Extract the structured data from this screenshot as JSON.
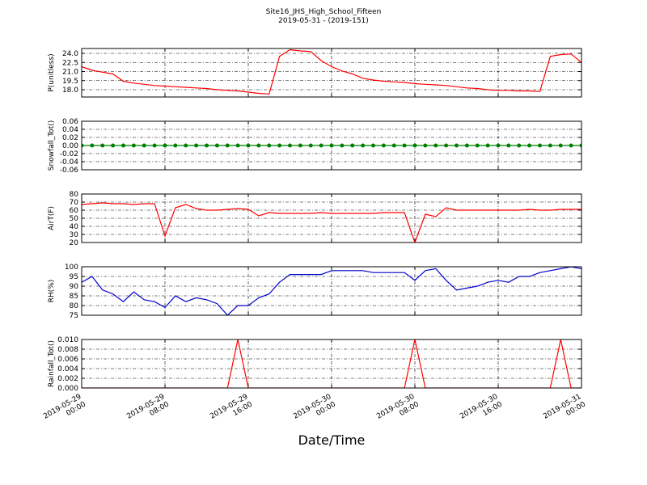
{
  "chart_data": [
    {
      "type": "line",
      "title": "Site16_JHS_High_School_Fifteen",
      "subtitle": "2019-05-31 - (2019-151)",
      "ylabel": "P(unitless)",
      "color": "#ff0000",
      "grid": true,
      "x": [
        "2019-05-29 00:00",
        "2019-05-29 01:00",
        "2019-05-29 02:00",
        "2019-05-29 03:00",
        "2019-05-29 04:00",
        "2019-05-29 05:00",
        "2019-05-29 06:00",
        "2019-05-29 07:00",
        "2019-05-29 08:00",
        "2019-05-29 09:00",
        "2019-05-29 10:00",
        "2019-05-29 11:00",
        "2019-05-29 12:00",
        "2019-05-29 13:00",
        "2019-05-29 14:00",
        "2019-05-29 15:00",
        "2019-05-29 16:00",
        "2019-05-29 17:00",
        "2019-05-29 18:00",
        "2019-05-29 19:00",
        "2019-05-29 20:00",
        "2019-05-29 21:00",
        "2019-05-29 22:00",
        "2019-05-29 23:00",
        "2019-05-30 00:00",
        "2019-05-30 01:00",
        "2019-05-30 02:00",
        "2019-05-30 03:00",
        "2019-05-30 04:00",
        "2019-05-30 05:00",
        "2019-05-30 06:00",
        "2019-05-30 07:00",
        "2019-05-30 08:00",
        "2019-05-30 09:00",
        "2019-05-30 10:00",
        "2019-05-30 11:00",
        "2019-05-30 12:00",
        "2019-05-30 13:00",
        "2019-05-30 14:00",
        "2019-05-30 15:00",
        "2019-05-30 16:00",
        "2019-05-30 17:00",
        "2019-05-30 18:00",
        "2019-05-30 19:00",
        "2019-05-30 20:00",
        "2019-05-30 21:00",
        "2019-05-30 22:00",
        "2019-05-30 23:00",
        "2019-05-31 00:00"
      ],
      "values": [
        21.8,
        21.2,
        20.9,
        20.6,
        19.4,
        19.1,
        18.9,
        18.7,
        18.6,
        18.5,
        18.4,
        18.3,
        18.2,
        18.0,
        17.9,
        17.8,
        17.6,
        17.4,
        17.3,
        23.5,
        24.6,
        24.4,
        24.3,
        22.8,
        21.8,
        21.1,
        20.6,
        19.9,
        19.6,
        19.4,
        19.3,
        19.2,
        19.0,
        18.9,
        18.8,
        18.7,
        18.5,
        18.3,
        18.2,
        18.0,
        17.9,
        17.9,
        17.8,
        17.8,
        17.7,
        23.5,
        23.8,
        23.9,
        22.5
      ],
      "ylim": [
        16.8,
        24.8
      ],
      "yticks": [
        {
          "value": 18,
          "label": "18.0"
        },
        19.5,
        {
          "value": 21,
          "label": "21.0"
        },
        22.5,
        {
          "value": 24,
          "label": "24.0"
        }
      ]
    },
    {
      "type": "line",
      "ylabel": "Snowfall_Tot()",
      "color": "#008000",
      "markers": true,
      "grid": true,
      "x": [
        "2019-05-29 00:00",
        "2019-05-29 01:00",
        "2019-05-29 02:00",
        "2019-05-29 03:00",
        "2019-05-29 04:00",
        "2019-05-29 05:00",
        "2019-05-29 06:00",
        "2019-05-29 07:00",
        "2019-05-29 08:00",
        "2019-05-29 09:00",
        "2019-05-29 10:00",
        "2019-05-29 11:00",
        "2019-05-29 12:00",
        "2019-05-29 13:00",
        "2019-05-29 14:00",
        "2019-05-29 15:00",
        "2019-05-29 16:00",
        "2019-05-29 17:00",
        "2019-05-29 18:00",
        "2019-05-29 19:00",
        "2019-05-29 20:00",
        "2019-05-29 21:00",
        "2019-05-29 22:00",
        "2019-05-29 23:00",
        "2019-05-30 00:00",
        "2019-05-30 01:00",
        "2019-05-30 02:00",
        "2019-05-30 03:00",
        "2019-05-30 04:00",
        "2019-05-30 05:00",
        "2019-05-30 06:00",
        "2019-05-30 07:00",
        "2019-05-30 08:00",
        "2019-05-30 09:00",
        "2019-05-30 10:00",
        "2019-05-30 11:00",
        "2019-05-30 12:00",
        "2019-05-30 13:00",
        "2019-05-30 14:00",
        "2019-05-30 15:00",
        "2019-05-30 16:00",
        "2019-05-30 17:00",
        "2019-05-30 18:00",
        "2019-05-30 19:00",
        "2019-05-30 20:00",
        "2019-05-30 21:00",
        "2019-05-30 22:00",
        "2019-05-30 23:00",
        "2019-05-31 00:00"
      ],
      "values": [
        0,
        0,
        0,
        0,
        0,
        0,
        0,
        0,
        0,
        0,
        0,
        0,
        0,
        0,
        0,
        0,
        0,
        0,
        0,
        0,
        0,
        0,
        0,
        0,
        0,
        0,
        0,
        0,
        0,
        0,
        0,
        0,
        0,
        0,
        0,
        0,
        0,
        0,
        0,
        0,
        0,
        0,
        0,
        0,
        0,
        0,
        0,
        0,
        0
      ],
      "ylim": [
        -0.06,
        0.06
      ],
      "yticks": [
        {
          "value": -0.06,
          "label": "-0.06"
        },
        {
          "value": -0.04,
          "label": "-0.04"
        },
        {
          "value": -0.02,
          "label": "-0.02"
        },
        {
          "value": 0,
          "label": "0.00"
        },
        {
          "value": 0.02,
          "label": "0.02"
        },
        {
          "value": 0.04,
          "label": "0.04"
        },
        {
          "value": 0.06,
          "label": "0.06"
        }
      ]
    },
    {
      "type": "line",
      "ylabel": "AirT(F)",
      "color": "#ff0000",
      "grid": true,
      "x": [
        "2019-05-29 00:00",
        "2019-05-29 01:00",
        "2019-05-29 02:00",
        "2019-05-29 03:00",
        "2019-05-29 04:00",
        "2019-05-29 05:00",
        "2019-05-29 06:00",
        "2019-05-29 07:00",
        "2019-05-29 08:00",
        "2019-05-29 09:00",
        "2019-05-29 10:00",
        "2019-05-29 11:00",
        "2019-05-29 12:00",
        "2019-05-29 13:00",
        "2019-05-29 14:00",
        "2019-05-29 15:00",
        "2019-05-29 16:00",
        "2019-05-29 17:00",
        "2019-05-29 18:00",
        "2019-05-29 19:00",
        "2019-05-29 20:00",
        "2019-05-29 21:00",
        "2019-05-29 22:00",
        "2019-05-29 23:00",
        "2019-05-30 00:00",
        "2019-05-30 01:00",
        "2019-05-30 02:00",
        "2019-05-30 03:00",
        "2019-05-30 04:00",
        "2019-05-30 05:00",
        "2019-05-30 06:00",
        "2019-05-30 07:00",
        "2019-05-30 08:00",
        "2019-05-30 09:00",
        "2019-05-30 10:00",
        "2019-05-30 11:00",
        "2019-05-30 12:00",
        "2019-05-30 13:00",
        "2019-05-30 14:00",
        "2019-05-30 15:00",
        "2019-05-30 16:00",
        "2019-05-30 17:00",
        "2019-05-30 18:00",
        "2019-05-30 19:00",
        "2019-05-30 20:00",
        "2019-05-30 21:00",
        "2019-05-30 22:00",
        "2019-05-30 23:00",
        "2019-05-31 00:00"
      ],
      "values": [
        67,
        68,
        69,
        68,
        68,
        67,
        68,
        68,
        28,
        63,
        67,
        62,
        60,
        60,
        61,
        62,
        61,
        53,
        57,
        56,
        56,
        56,
        56,
        57,
        56,
        56,
        56,
        56,
        56,
        57,
        57,
        57,
        20,
        55,
        52,
        63,
        60,
        60,
        60,
        60,
        60,
        60,
        60,
        61,
        60,
        60,
        61,
        61,
        61
      ],
      "ylim": [
        20,
        80
      ],
      "yticks": [
        20,
        30,
        40,
        50,
        60,
        70,
        80
      ]
    },
    {
      "type": "line",
      "ylabel": "RH(%)",
      "color": "#0000cc",
      "grid": true,
      "x": [
        "2019-05-29 00:00",
        "2019-05-29 01:00",
        "2019-05-29 02:00",
        "2019-05-29 03:00",
        "2019-05-29 04:00",
        "2019-05-29 05:00",
        "2019-05-29 06:00",
        "2019-05-29 07:00",
        "2019-05-29 08:00",
        "2019-05-29 09:00",
        "2019-05-29 10:00",
        "2019-05-29 11:00",
        "2019-05-29 12:00",
        "2019-05-29 13:00",
        "2019-05-29 14:00",
        "2019-05-29 15:00",
        "2019-05-29 16:00",
        "2019-05-29 17:00",
        "2019-05-29 18:00",
        "2019-05-29 19:00",
        "2019-05-29 20:00",
        "2019-05-29 21:00",
        "2019-05-29 22:00",
        "2019-05-29 23:00",
        "2019-05-30 00:00",
        "2019-05-30 01:00",
        "2019-05-30 02:00",
        "2019-05-30 03:00",
        "2019-05-30 04:00",
        "2019-05-30 05:00",
        "2019-05-30 06:00",
        "2019-05-30 07:00",
        "2019-05-30 08:00",
        "2019-05-30 09:00",
        "2019-05-30 10:00",
        "2019-05-30 11:00",
        "2019-05-30 12:00",
        "2019-05-30 13:00",
        "2019-05-30 14:00",
        "2019-05-30 15:00",
        "2019-05-30 16:00",
        "2019-05-30 17:00",
        "2019-05-30 18:00",
        "2019-05-30 19:00",
        "2019-05-30 20:00",
        "2019-05-30 21:00",
        "2019-05-30 22:00",
        "2019-05-30 23:00",
        "2019-05-31 00:00"
      ],
      "values": [
        92,
        95,
        88,
        86,
        82,
        87,
        83,
        82,
        79,
        85,
        82,
        84,
        83,
        81,
        75,
        80,
        80,
        84,
        86,
        92,
        96,
        96,
        96,
        96,
        98,
        98,
        98,
        98,
        97,
        97,
        97,
        97,
        93,
        98,
        99,
        93,
        88,
        89,
        90,
        92,
        93,
        92,
        95,
        95,
        97,
        98,
        99,
        100,
        99
      ],
      "ylim": [
        75,
        100
      ],
      "yticks": [
        75,
        80,
        85,
        90,
        95,
        100
      ]
    },
    {
      "type": "line",
      "ylabel": "Rainfall_Tot()",
      "xlabel": "Date/Time",
      "color": "#ff0000",
      "grid": true,
      "x": [
        "2019-05-29 00:00",
        "2019-05-29 01:00",
        "2019-05-29 02:00",
        "2019-05-29 03:00",
        "2019-05-29 04:00",
        "2019-05-29 05:00",
        "2019-05-29 06:00",
        "2019-05-29 07:00",
        "2019-05-29 08:00",
        "2019-05-29 09:00",
        "2019-05-29 10:00",
        "2019-05-29 11:00",
        "2019-05-29 12:00",
        "2019-05-29 13:00",
        "2019-05-29 14:00",
        "2019-05-29 15:00",
        "2019-05-29 16:00",
        "2019-05-29 17:00",
        "2019-05-29 18:00",
        "2019-05-29 19:00",
        "2019-05-29 20:00",
        "2019-05-29 21:00",
        "2019-05-29 22:00",
        "2019-05-29 23:00",
        "2019-05-30 00:00",
        "2019-05-30 01:00",
        "2019-05-30 02:00",
        "2019-05-30 03:00",
        "2019-05-30 04:00",
        "2019-05-30 05:00",
        "2019-05-30 06:00",
        "2019-05-30 07:00",
        "2019-05-30 08:00",
        "2019-05-30 09:00",
        "2019-05-30 10:00",
        "2019-05-30 11:00",
        "2019-05-30 12:00",
        "2019-05-30 13:00",
        "2019-05-30 14:00",
        "2019-05-30 15:00",
        "2019-05-30 16:00",
        "2019-05-30 17:00",
        "2019-05-30 18:00",
        "2019-05-30 19:00",
        "2019-05-30 20:00",
        "2019-05-30 21:00",
        "2019-05-30 22:00",
        "2019-05-30 23:00",
        "2019-05-31 00:00"
      ],
      "values": [
        0,
        0,
        0,
        0,
        0,
        0,
        0,
        0,
        0,
        0,
        0,
        0,
        0,
        0,
        0,
        0.01,
        0,
        0,
        0,
        0,
        0,
        0,
        0,
        0,
        0,
        0,
        0,
        0,
        0,
        0,
        0,
        0,
        0.01,
        0,
        0,
        0,
        0,
        0,
        0,
        0,
        0,
        0,
        0,
        0,
        0,
        0,
        0.01,
        0,
        0
      ],
      "ylim": [
        0,
        0.01
      ],
      "yticks": [
        {
          "value": 0,
          "label": "0.000"
        },
        {
          "value": 0.002,
          "label": "0.002"
        },
        {
          "value": 0.004,
          "label": "0.004"
        },
        {
          "value": 0.006,
          "label": "0.006"
        },
        {
          "value": 0.008,
          "label": "0.008"
        },
        {
          "value": 0.01,
          "label": "0.010"
        }
      ],
      "xlim": [
        "2019-05-29 00:00",
        "2019-05-31 00:00"
      ],
      "xticks": [
        "2019-05-29 00:00",
        "2019-05-29 08:00",
        "2019-05-29 16:00",
        "2019-05-30 00:00",
        "2019-05-30 08:00",
        "2019-05-30 16:00",
        "2019-05-31 00:00"
      ]
    }
  ]
}
